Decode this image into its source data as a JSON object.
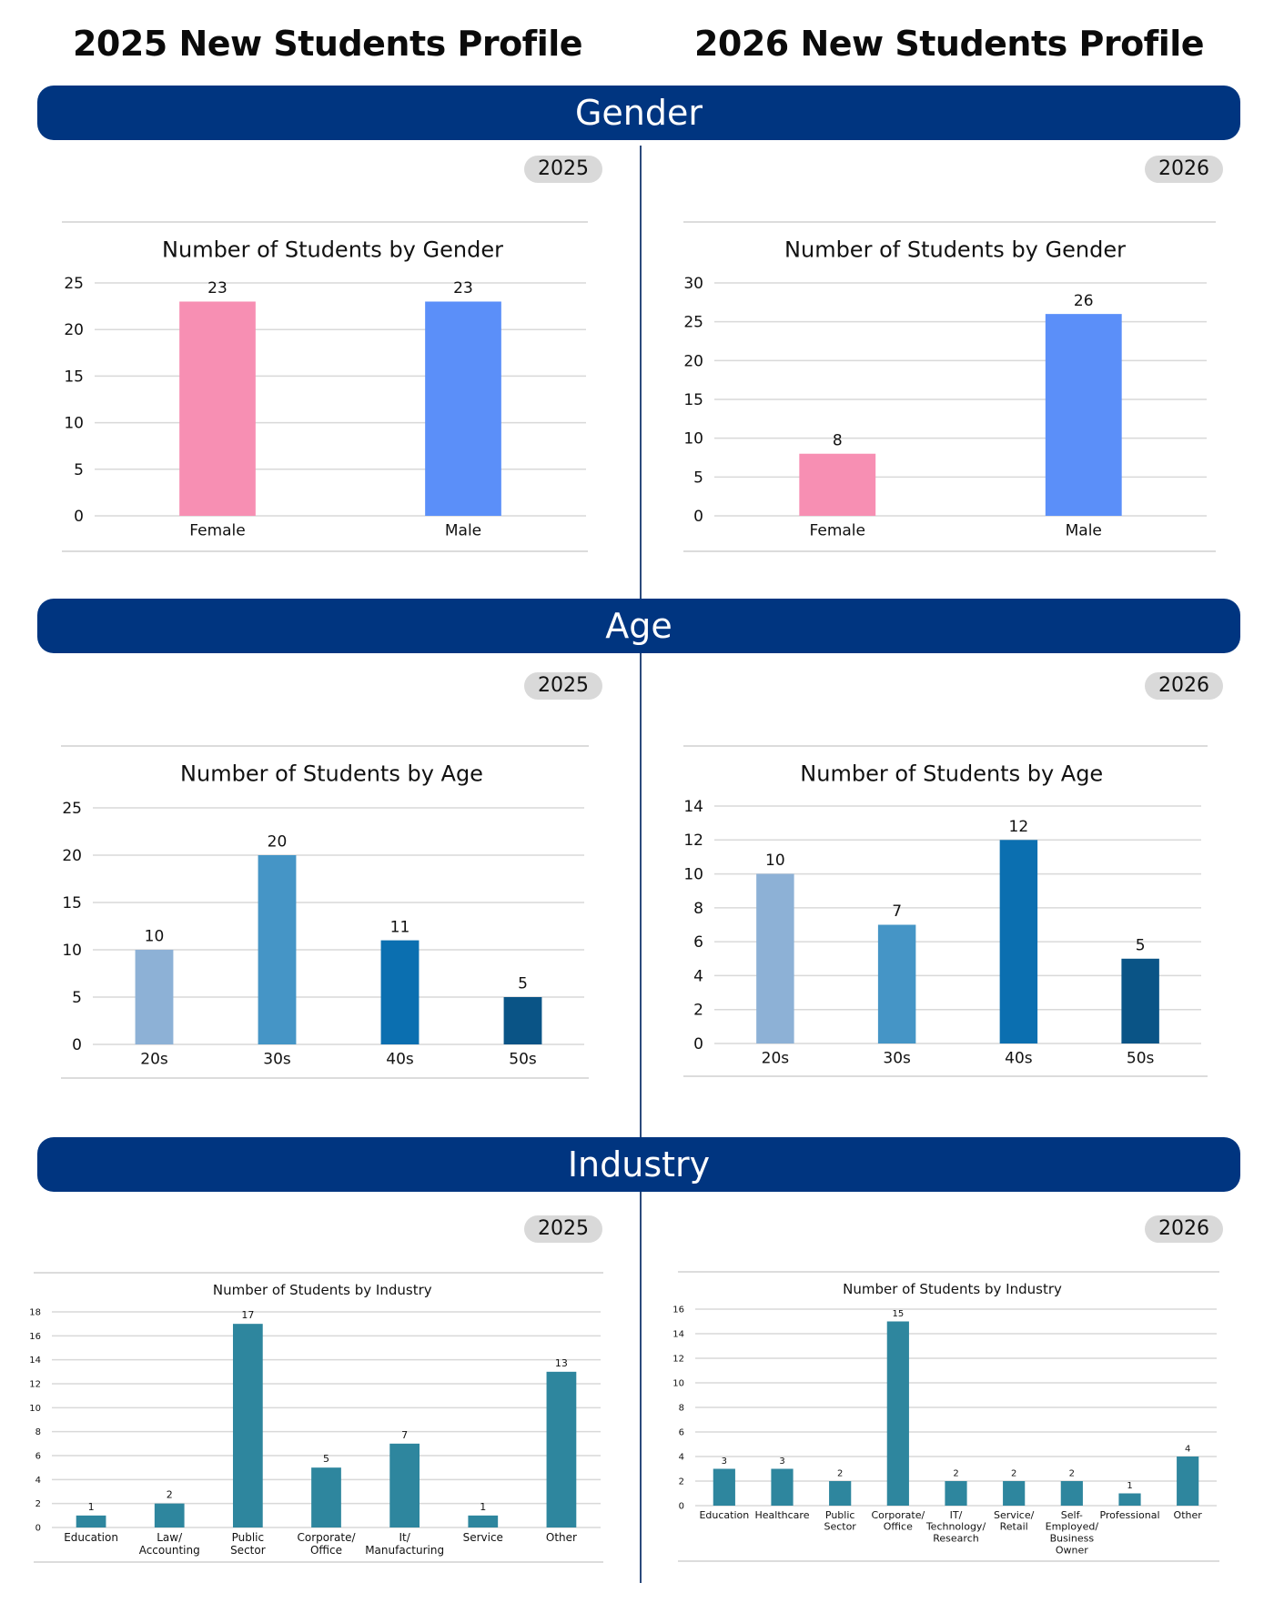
{
  "titles": {
    "left": "2025 New Students Profile",
    "right": "2026 New Students Profile"
  },
  "sections": {
    "gender": "Gender",
    "age": "Age",
    "industry": "Industry"
  },
  "years": {
    "y2025": "2025",
    "y2026": "2026"
  },
  "chart_data": [
    {
      "id": "gender2025",
      "type": "bar",
      "title": "Number of Students by Gender",
      "categories": [
        "Female",
        "Male"
      ],
      "values": [
        23,
        23
      ],
      "colors": [
        "#f78fb3",
        "#5b8ff9"
      ],
      "ylim": [
        0,
        25
      ],
      "yticks": [
        0,
        5,
        10,
        15,
        20,
        25
      ],
      "grid": true,
      "legend": "none"
    },
    {
      "id": "gender2026",
      "type": "bar",
      "title": "Number of Students by Gender",
      "categories": [
        "Female",
        "Male"
      ],
      "values": [
        8,
        26
      ],
      "colors": [
        "#f78fb3",
        "#5b8ff9"
      ],
      "ylim": [
        0,
        30
      ],
      "yticks": [
        0,
        5,
        10,
        15,
        20,
        25,
        30
      ],
      "grid": true,
      "legend": "none"
    },
    {
      "id": "age2025",
      "type": "bar",
      "title": "Number of Students by Age",
      "categories": [
        "20s",
        "30s",
        "40s",
        "50s"
      ],
      "values": [
        10,
        20,
        11,
        5
      ],
      "colors": [
        "#8db1d6",
        "#4595c6",
        "#0b6fb0",
        "#0a5486"
      ],
      "ylim": [
        0,
        25
      ],
      "yticks": [
        0,
        5,
        10,
        15,
        20,
        25
      ],
      "grid": true,
      "legend": "none"
    },
    {
      "id": "age2026",
      "type": "bar",
      "title": "Number of Students by Age",
      "categories": [
        "20s",
        "30s",
        "40s",
        "50s"
      ],
      "values": [
        10,
        7,
        12,
        5
      ],
      "colors": [
        "#8db1d6",
        "#4595c6",
        "#0b6fb0",
        "#0a5486"
      ],
      "ylim": [
        0,
        14
      ],
      "yticks": [
        0,
        2,
        4,
        6,
        8,
        10,
        12,
        14
      ],
      "grid": true,
      "legend": "none"
    },
    {
      "id": "industry2025",
      "type": "bar",
      "title": "Number of Students by Industry",
      "categories": [
        "Education",
        "Law/\nAccounting",
        "Public\nSector",
        "Corporate/\nOffice",
        "It/\nManufacturing",
        "Service",
        "Other"
      ],
      "values": [
        1,
        2,
        17,
        5,
        7,
        1,
        13
      ],
      "colors": [
        "#2e869e"
      ],
      "ylim": [
        0,
        18
      ],
      "yticks": [
        0,
        2,
        4,
        6,
        8,
        10,
        12,
        14,
        16,
        18
      ],
      "grid": true,
      "legend": "none"
    },
    {
      "id": "industry2026",
      "type": "bar",
      "title": "Number of Students by Industry",
      "categories": [
        "Education",
        "Healthcare",
        "Public\nSector",
        "Corporate/\nOffice",
        "IT/\nTechnology/\nResearch",
        "Service/\nRetail",
        "Self-\nEmployed/\nBusiness\nOwner",
        "Professional",
        "Other"
      ],
      "values": [
        3,
        3,
        2,
        15,
        2,
        2,
        2,
        1,
        4
      ],
      "colors": [
        "#2e869e"
      ],
      "ylim": [
        0,
        16
      ],
      "yticks": [
        0,
        2,
        4,
        6,
        8,
        10,
        12,
        14,
        16
      ],
      "grid": true,
      "legend": "none"
    }
  ]
}
